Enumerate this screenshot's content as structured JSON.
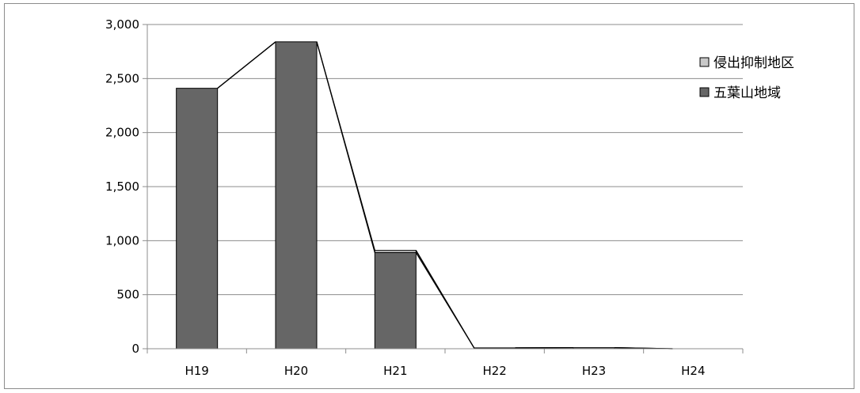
{
  "chart_data": {
    "type": "bar",
    "stacked": true,
    "categories": [
      "H19",
      "H20",
      "H21",
      "H22",
      "H23",
      "H24"
    ],
    "series": [
      {
        "name": "侵出抑制地区",
        "values": [
          0,
          0,
          20,
          0,
          0,
          0
        ],
        "color": "#c8c8c8"
      },
      {
        "name": "五葉山地域",
        "values": [
          2410,
          2840,
          890,
          8,
          10,
          0
        ],
        "color": "#666666"
      }
    ],
    "connector_line": true,
    "ylim": [
      0,
      3000
    ],
    "yticks": [
      "0",
      "500",
      "1,000",
      "1,500",
      "2,000",
      "2,500",
      "3,000"
    ],
    "ytick_values": [
      0,
      500,
      1000,
      1500,
      2000,
      2500,
      3000
    ],
    "grid": true,
    "legend_position": "right"
  }
}
